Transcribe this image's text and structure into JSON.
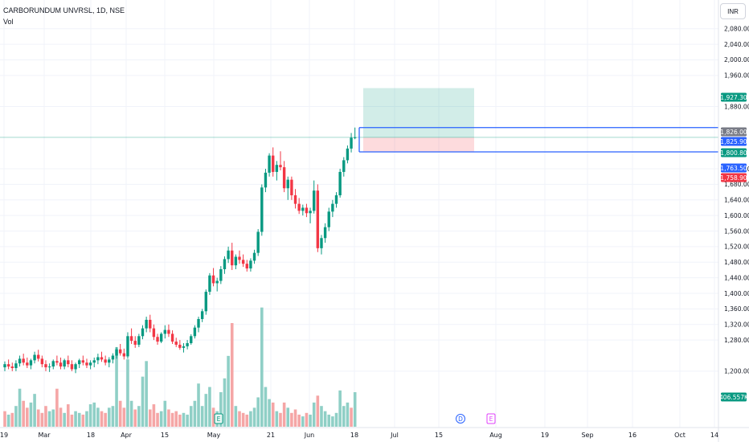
{
  "legend": {
    "symbol": "CARBORUNDUM UNVRSL, 1D, NSE",
    "volume_label": "Vol"
  },
  "currency_button": "INR",
  "price_axis": {
    "ticks": [
      "2,080.00",
      "2,040.00",
      "2,000.00",
      "1,960.00",
      "1,880.00",
      "1,720.00",
      "1,680.00",
      "1,640.00",
      "1,600.00",
      "1,560.00",
      "1,520.00",
      "1,480.00",
      "1,440.00",
      "1,400.00",
      "1,360.00",
      "1,320.00",
      "1,280.00",
      "1,200.00"
    ]
  },
  "time_axis": {
    "ticks": [
      "19",
      "Mar",
      "18",
      "Apr",
      "15",
      "May",
      "21",
      "Jun",
      "18",
      "Jul",
      "15",
      "Aug",
      "19",
      "Sep",
      "16",
      "Oct",
      "14"
    ]
  },
  "price_tags": [
    {
      "label": "1,927.30",
      "price": 1927.3,
      "color": "#089981"
    },
    {
      "label": "1,826.00",
      "price": 1826.0,
      "color": "#787b86"
    },
    {
      "label": "1,825.90",
      "price": 1825.9,
      "color": "#2962ff"
    },
    {
      "label": "1,800.80",
      "price": 1800.8,
      "color": "#089981"
    },
    {
      "label": "1,763.50",
      "price": 1763.5,
      "color": "#2962ff"
    },
    {
      "label": "1,758.90",
      "price": 1758.9,
      "color": "#f23645"
    },
    {
      "label": "406.557K",
      "price": null,
      "color": "#089981"
    }
  ],
  "event_markers": [
    {
      "letter": "E",
      "kind": "earnings",
      "color": "#089981"
    },
    {
      "letter": "D",
      "kind": "dividend",
      "color": "#2962ff"
    },
    {
      "letter": "E",
      "kind": "earnings",
      "color": "#e040fb"
    }
  ],
  "colors": {
    "up": "#089981",
    "down": "#f23645",
    "up_vol": "#8fcfc6",
    "down_vol": "#f5a6a6",
    "line": "#2962ff"
  },
  "chart_data": {
    "type": "candlestick",
    "title": "CARBORUNDUM UNVRSL, 1D, NSE",
    "xlabel": "",
    "ylabel": "",
    "ylim": [
      1190,
      2100
    ],
    "long_position": {
      "entry": 1800.8,
      "target": 1927.3,
      "stop": 1763.5
    },
    "horizontal_lines": [
      1825.9,
      1763.5
    ],
    "horizontal_line_at": 1800.8,
    "candles": [
      [
        1210,
        1225,
        1200,
        1218
      ],
      [
        1218,
        1230,
        1205,
        1212
      ],
      [
        1212,
        1222,
        1200,
        1208
      ],
      [
        1208,
        1228,
        1200,
        1220
      ],
      [
        1220,
        1240,
        1212,
        1232
      ],
      [
        1232,
        1245,
        1215,
        1222
      ],
      [
        1222,
        1235,
        1208,
        1215
      ],
      [
        1215,
        1232,
        1205,
        1228
      ],
      [
        1228,
        1250,
        1220,
        1242
      ],
      [
        1242,
        1255,
        1225,
        1232
      ],
      [
        1232,
        1240,
        1210,
        1218
      ],
      [
        1218,
        1228,
        1200,
        1210
      ],
      [
        1210,
        1220,
        1198,
        1212
      ],
      [
        1212,
        1230,
        1205,
        1226
      ],
      [
        1226,
        1240,
        1215,
        1222
      ],
      [
        1222,
        1235,
        1205,
        1212
      ],
      [
        1212,
        1232,
        1205,
        1228
      ],
      [
        1228,
        1240,
        1210,
        1218
      ],
      [
        1218,
        1228,
        1200,
        1205
      ],
      [
        1205,
        1222,
        1195,
        1218
      ],
      [
        1218,
        1232,
        1208,
        1228
      ],
      [
        1228,
        1240,
        1215,
        1222
      ],
      [
        1222,
        1232,
        1208,
        1215
      ],
      [
        1215,
        1228,
        1205,
        1222
      ],
      [
        1222,
        1235,
        1210,
        1228
      ],
      [
        1228,
        1245,
        1218,
        1236
      ],
      [
        1236,
        1250,
        1224,
        1230
      ],
      [
        1230,
        1240,
        1215,
        1222
      ],
      [
        1222,
        1236,
        1210,
        1230
      ],
      [
        1230,
        1246,
        1220,
        1240
      ],
      [
        1240,
        1262,
        1232,
        1256
      ],
      [
        1256,
        1270,
        1240,
        1246
      ],
      [
        1246,
        1258,
        1230,
        1238
      ],
      [
        1238,
        1300,
        1232,
        1290
      ],
      [
        1290,
        1310,
        1270,
        1278
      ],
      [
        1278,
        1290,
        1260,
        1268
      ],
      [
        1268,
        1296,
        1262,
        1290
      ],
      [
        1290,
        1318,
        1282,
        1310
      ],
      [
        1310,
        1340,
        1300,
        1332
      ],
      [
        1332,
        1345,
        1300,
        1310
      ],
      [
        1310,
        1320,
        1280,
        1288
      ],
      [
        1288,
        1296,
        1268,
        1276
      ],
      [
        1276,
        1300,
        1272,
        1296
      ],
      [
        1296,
        1318,
        1284,
        1306
      ],
      [
        1306,
        1320,
        1288,
        1296
      ],
      [
        1296,
        1305,
        1270,
        1276
      ],
      [
        1276,
        1286,
        1262,
        1268
      ],
      [
        1268,
        1280,
        1255,
        1260
      ],
      [
        1260,
        1272,
        1248,
        1264
      ],
      [
        1264,
        1280,
        1256,
        1272
      ],
      [
        1272,
        1295,
        1268,
        1290
      ],
      [
        1290,
        1318,
        1284,
        1312
      ],
      [
        1312,
        1340,
        1300,
        1334
      ],
      [
        1334,
        1360,
        1326,
        1354
      ],
      [
        1354,
        1410,
        1345,
        1404
      ],
      [
        1404,
        1452,
        1396,
        1446
      ],
      [
        1446,
        1465,
        1418,
        1426
      ],
      [
        1426,
        1440,
        1405,
        1432
      ],
      [
        1432,
        1470,
        1424,
        1462
      ],
      [
        1462,
        1495,
        1450,
        1488
      ],
      [
        1488,
        1520,
        1478,
        1510
      ],
      [
        1510,
        1530,
        1460,
        1472
      ],
      [
        1472,
        1500,
        1462,
        1494
      ],
      [
        1494,
        1510,
        1476,
        1486
      ],
      [
        1486,
        1500,
        1468,
        1476
      ],
      [
        1476,
        1486,
        1456,
        1464
      ],
      [
        1464,
        1490,
        1456,
        1484
      ],
      [
        1484,
        1512,
        1476,
        1504
      ],
      [
        1504,
        1565,
        1496,
        1558
      ],
      [
        1558,
        1680,
        1548,
        1672
      ],
      [
        1672,
        1720,
        1660,
        1710
      ],
      [
        1710,
        1760,
        1700,
        1754
      ],
      [
        1754,
        1775,
        1700,
        1712
      ],
      [
        1712,
        1740,
        1690,
        1730
      ],
      [
        1730,
        1765,
        1716,
        1724
      ],
      [
        1724,
        1740,
        1660,
        1670
      ],
      [
        1670,
        1700,
        1640,
        1692
      ],
      [
        1692,
        1700,
        1640,
        1652
      ],
      [
        1652,
        1668,
        1618,
        1630
      ],
      [
        1630,
        1645,
        1604,
        1612
      ],
      [
        1612,
        1628,
        1600,
        1620
      ],
      [
        1620,
        1630,
        1596,
        1606
      ],
      [
        1606,
        1620,
        1580,
        1612
      ],
      [
        1612,
        1690,
        1605,
        1664
      ],
      [
        1664,
        1680,
        1506,
        1516
      ],
      [
        1516,
        1550,
        1500,
        1542
      ],
      [
        1542,
        1580,
        1530,
        1570
      ],
      [
        1570,
        1620,
        1560,
        1610
      ],
      [
        1610,
        1640,
        1596,
        1630
      ],
      [
        1630,
        1660,
        1620,
        1652
      ],
      [
        1652,
        1720,
        1646,
        1712
      ],
      [
        1712,
        1750,
        1700,
        1742
      ],
      [
        1742,
        1780,
        1734,
        1772
      ],
      [
        1772,
        1812,
        1762,
        1800
      ],
      [
        1800,
        1826,
        1796,
        1801
      ]
    ],
    "volumes": [
      [
        45,
        "d"
      ],
      [
        35,
        "u"
      ],
      [
        40,
        "d"
      ],
      [
        60,
        "u"
      ],
      [
        110,
        "u"
      ],
      [
        75,
        "d"
      ],
      [
        55,
        "d"
      ],
      [
        70,
        "u"
      ],
      [
        95,
        "u"
      ],
      [
        50,
        "d"
      ],
      [
        40,
        "d"
      ],
      [
        60,
        "d"
      ],
      [
        45,
        "u"
      ],
      [
        50,
        "u"
      ],
      [
        110,
        "d"
      ],
      [
        55,
        "d"
      ],
      [
        40,
        "u"
      ],
      [
        65,
        "d"
      ],
      [
        35,
        "d"
      ],
      [
        45,
        "u"
      ],
      [
        40,
        "u"
      ],
      [
        35,
        "d"
      ],
      [
        45,
        "u"
      ],
      [
        65,
        "u"
      ],
      [
        70,
        "u"
      ],
      [
        55,
        "u"
      ],
      [
        45,
        "d"
      ],
      [
        40,
        "d"
      ],
      [
        55,
        "u"
      ],
      [
        60,
        "u"
      ],
      [
        230,
        "u"
      ],
      [
        75,
        "d"
      ],
      [
        55,
        "d"
      ],
      [
        195,
        "u"
      ],
      [
        75,
        "u"
      ],
      [
        50,
        "d"
      ],
      [
        60,
        "u"
      ],
      [
        145,
        "u"
      ],
      [
        190,
        "u"
      ],
      [
        50,
        "d"
      ],
      [
        65,
        "d"
      ],
      [
        40,
        "d"
      ],
      [
        45,
        "u"
      ],
      [
        75,
        "u"
      ],
      [
        50,
        "d"
      ],
      [
        40,
        "d"
      ],
      [
        45,
        "d"
      ],
      [
        35,
        "d"
      ],
      [
        40,
        "u"
      ],
      [
        35,
        "u"
      ],
      [
        60,
        "u"
      ],
      [
        75,
        "u"
      ],
      [
        125,
        "u"
      ],
      [
        60,
        "u"
      ],
      [
        95,
        "u"
      ],
      [
        115,
        "u"
      ],
      [
        55,
        "d"
      ],
      [
        45,
        "u"
      ],
      [
        100,
        "u"
      ],
      [
        140,
        "u"
      ],
      [
        205,
        "u"
      ],
      [
        300,
        "d"
      ],
      [
        60,
        "u"
      ],
      [
        45,
        "d"
      ],
      [
        40,
        "d"
      ],
      [
        35,
        "d"
      ],
      [
        45,
        "u"
      ],
      [
        55,
        "u"
      ],
      [
        85,
        "u"
      ],
      [
        345,
        "u"
      ],
      [
        115,
        "u"
      ],
      [
        80,
        "u"
      ],
      [
        70,
        "d"
      ],
      [
        45,
        "u"
      ],
      [
        40,
        "d"
      ],
      [
        70,
        "d"
      ],
      [
        55,
        "u"
      ],
      [
        40,
        "d"
      ],
      [
        50,
        "d"
      ],
      [
        35,
        "d"
      ],
      [
        30,
        "u"
      ],
      [
        40,
        "d"
      ],
      [
        35,
        "u"
      ],
      [
        70,
        "u"
      ],
      [
        90,
        "d"
      ],
      [
        60,
        "u"
      ],
      [
        45,
        "u"
      ],
      [
        35,
        "u"
      ],
      [
        30,
        "u"
      ],
      [
        40,
        "u"
      ],
      [
        105,
        "u"
      ],
      [
        60,
        "u"
      ],
      [
        70,
        "u"
      ],
      [
        55,
        "d"
      ],
      [
        100,
        "u"
      ]
    ]
  }
}
